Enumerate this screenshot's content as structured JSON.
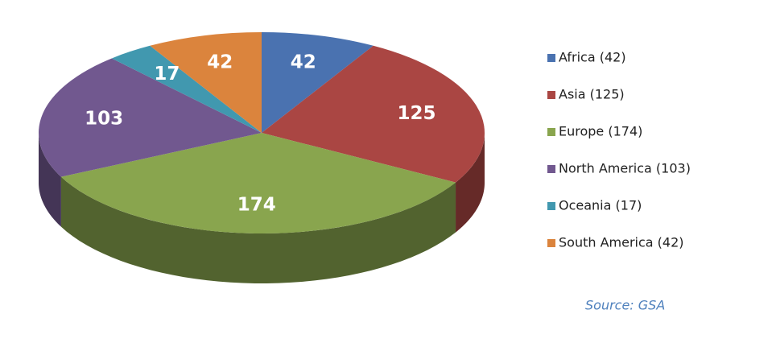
{
  "chart_data": {
    "type": "pie3d",
    "categories": [
      "Africa (42)",
      "Asia (125)",
      "Europe (174)",
      "North America (103)",
      "Oceania (17)",
      "South America (42)"
    ],
    "values": [
      42,
      125,
      174,
      103,
      17,
      42
    ],
    "colors": [
      "#4a72b0",
      "#aa4643",
      "#89a54e",
      "#71588f",
      "#4198af",
      "#db843d"
    ],
    "legend": "right",
    "source": "Source: GSA"
  }
}
